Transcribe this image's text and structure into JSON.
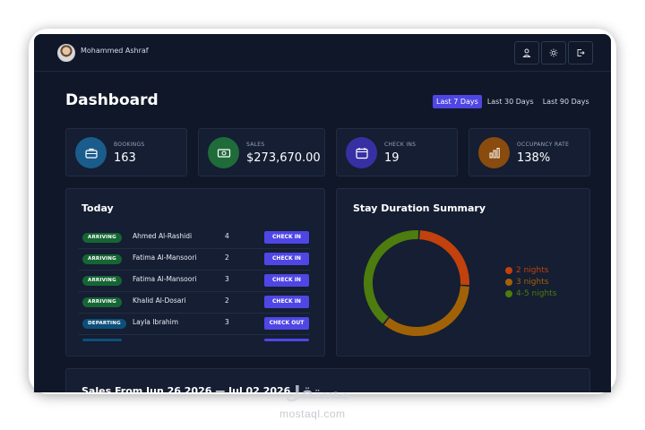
{
  "header": {
    "user_name": "Mohammed Ashraf",
    "buttons": [
      {
        "icon": "user-icon"
      },
      {
        "icon": "sun-icon"
      },
      {
        "icon": "logout-icon"
      }
    ]
  },
  "page": {
    "title": "Dashboard",
    "ranges": [
      "Last 7 Days",
      "Last 30 Days",
      "Last 90 Days"
    ],
    "active_range": "Last 7 Days"
  },
  "kpis": [
    {
      "label": "BOOKINGS",
      "value": "163",
      "icon": "briefcase-icon",
      "color": "#1a5c8c"
    },
    {
      "label": "SALES",
      "value": "$273,670.00",
      "icon": "cash-icon",
      "color": "#1f6b3a"
    },
    {
      "label": "CHECK INS",
      "value": "19",
      "icon": "calendar-icon",
      "color": "#3730a3"
    },
    {
      "label": "OCCUPANCY RATE",
      "value": "138%",
      "icon": "bar-chart-icon",
      "color": "#8a4b0e"
    }
  ],
  "today": {
    "title": "Today",
    "rows": [
      {
        "status": "ARRIVING",
        "status_color": "#166534",
        "name": "Ahmed Al-Rashidi",
        "count": "4",
        "action": "CHECK IN"
      },
      {
        "status": "ARRIVING",
        "status_color": "#166534",
        "name": "Fatima Al-Mansoori",
        "count": "2",
        "action": "CHECK IN"
      },
      {
        "status": "ARRIVING",
        "status_color": "#166534",
        "name": "Fatima Al-Mansoori",
        "count": "3",
        "action": "CHECK IN"
      },
      {
        "status": "ARRIVING",
        "status_color": "#166534",
        "name": "Khalid Al-Dosari",
        "count": "2",
        "action": "CHECK IN"
      },
      {
        "status": "DEPARTING",
        "status_color": "#0e4f7a",
        "name": "Layla Ibrahim",
        "count": "3",
        "action": "CHECK OUT"
      }
    ]
  },
  "stay_summary": {
    "title": "Stay Duration Summary",
    "segments": [
      {
        "label": "2 nights",
        "value": 25,
        "color": "#c2410c"
      },
      {
        "label": "3 nights",
        "value": 35,
        "color": "#a16207"
      },
      {
        "label": "4-5 nights",
        "value": 40,
        "color": "#4d7c0f"
      }
    ]
  },
  "sales_panel": {
    "title": "Sales From Jun 26 2026 — Jul 02 2026"
  },
  "watermark": {
    "logo_text": "مستقل",
    "site": "mostaql.com"
  },
  "colors": {
    "accent": "#4f46e5",
    "background": "#0f1729",
    "card": "#151e32"
  }
}
